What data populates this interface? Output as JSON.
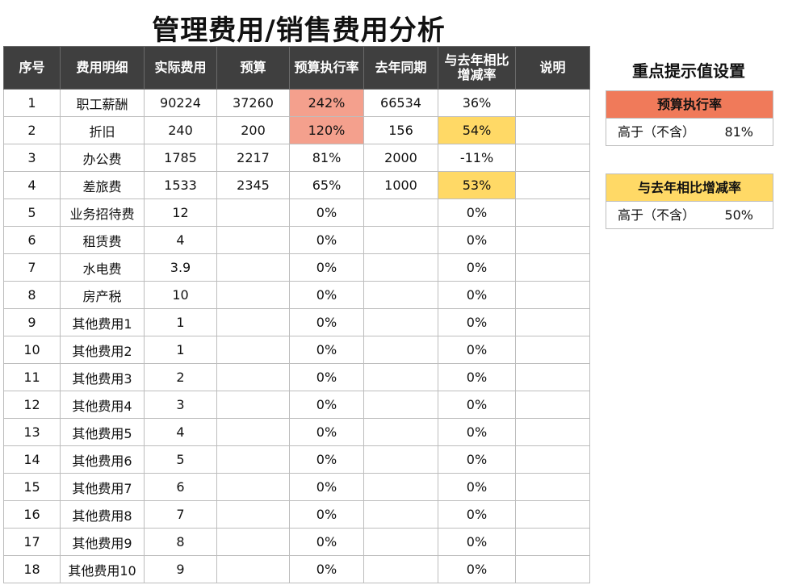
{
  "title": "管理费用/销售费用分析",
  "table": {
    "headers": [
      "序号",
      "费用明细",
      "实际费用",
      "预算",
      "预算执行率",
      "去年同期",
      "与去年相比\n增减率",
      "说明"
    ],
    "rows": [
      [
        "1",
        "职工薪酬",
        "90224",
        "37260",
        "242%",
        "66534",
        "36%",
        ""
      ],
      [
        "2",
        "折旧",
        "240",
        "200",
        "120%",
        "156",
        "54%",
        ""
      ],
      [
        "3",
        "办公费",
        "1785",
        "2217",
        "81%",
        "2000",
        "-11%",
        ""
      ],
      [
        "4",
        "差旅费",
        "1533",
        "2345",
        "65%",
        "1000",
        "53%",
        ""
      ],
      [
        "5",
        "业务招待费",
        "12",
        "",
        "0%",
        "",
        "0%",
        ""
      ],
      [
        "6",
        "租赁费",
        "4",
        "",
        "0%",
        "",
        "0%",
        ""
      ],
      [
        "7",
        "水电费",
        "3.9",
        "",
        "0%",
        "",
        "0%",
        ""
      ],
      [
        "8",
        "房产税",
        "10",
        "",
        "0%",
        "",
        "0%",
        ""
      ],
      [
        "9",
        "其他费用1",
        "1",
        "",
        "0%",
        "",
        "0%",
        ""
      ],
      [
        "10",
        "其他费用2",
        "1",
        "",
        "0%",
        "",
        "0%",
        ""
      ],
      [
        "11",
        "其他费用3",
        "2",
        "",
        "0%",
        "",
        "0%",
        ""
      ],
      [
        "12",
        "其他费用4",
        "3",
        "",
        "0%",
        "",
        "0%",
        ""
      ],
      [
        "13",
        "其他费用5",
        "4",
        "",
        "0%",
        "",
        "0%",
        ""
      ],
      [
        "14",
        "其他费用6",
        "5",
        "",
        "0%",
        "",
        "0%",
        ""
      ],
      [
        "15",
        "其他费用7",
        "6",
        "",
        "0%",
        "",
        "0%",
        ""
      ],
      [
        "16",
        "其他费用8",
        "7",
        "",
        "0%",
        "",
        "0%",
        ""
      ],
      [
        "17",
        "其他费用9",
        "8",
        "",
        "0%",
        "",
        "0%",
        ""
      ],
      [
        "18",
        "其他费用10",
        "9",
        "",
        "0%",
        "",
        "0%",
        ""
      ]
    ],
    "highlights": {
      "red": [
        [
          0,
          4
        ],
        [
          1,
          4
        ]
      ],
      "yellow": [
        [
          1,
          6
        ],
        [
          3,
          6
        ]
      ]
    }
  },
  "side": {
    "title": "重点提示值设置",
    "budget_rate": {
      "label": "预算执行率",
      "condition": "高于（不含）",
      "value": "81%"
    },
    "yoy_rate": {
      "label": "与去年相比增减率",
      "condition": "高于（不含）",
      "value": "50%"
    }
  },
  "colors": {
    "header_bg": "#3f3f3f",
    "highlight_red": "#f4a08d",
    "highlight_yellow": "#ffd966",
    "budget_box_head": "#f07a5a",
    "yoy_box_head": "#ffd966"
  }
}
